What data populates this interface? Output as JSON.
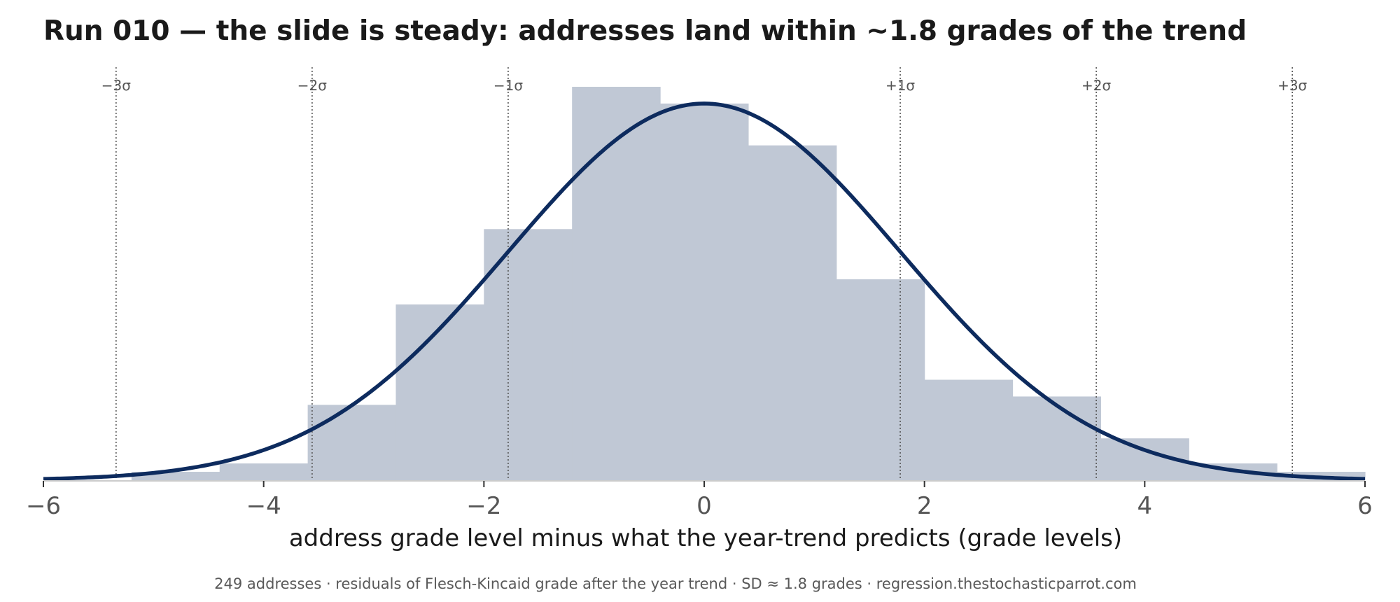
{
  "chart_data": {
    "type": "bar",
    "title": "Run 010 — the slide is steady: addresses land within ~1.8 grades of the trend",
    "xlabel": "address grade level minus what the year-trend predicts  (grade levels)",
    "footnote": "249 addresses · residuals of Flesch-Kincaid grade after the year trend · SD ≈ 1.8 grades · regression.thestochasticparrot.com",
    "xlim": [
      -6,
      6
    ],
    "xticks": [
      -6,
      -4,
      -2,
      0,
      2,
      4,
      6
    ],
    "xtick_labels": [
      "−6",
      "−4",
      "−2",
      "0",
      "2",
      "4",
      "6"
    ],
    "histogram": {
      "bin_edges": [
        -6.0,
        -5.2,
        -4.4,
        -3.6,
        -2.8,
        -2.0,
        -1.2,
        -0.4,
        0.4,
        1.2,
        2.0,
        2.8,
        3.6,
        4.4,
        5.2,
        6.0
      ],
      "counts": [
        0,
        1,
        2,
        9,
        21,
        30,
        47,
        45,
        40,
        24,
        12,
        10,
        5,
        2,
        1
      ],
      "color": "#c0c8d5"
    },
    "normal_curve": {
      "mean": 0,
      "sd": 1.78,
      "peak_count": 45,
      "color": "#0d2b5e"
    },
    "sigma_lines": [
      {
        "x": -5.34,
        "label": "−3σ"
      },
      {
        "x": -3.56,
        "label": "−2σ"
      },
      {
        "x": -1.78,
        "label": "−1σ"
      },
      {
        "x": 1.78,
        "label": "+1σ"
      },
      {
        "x": 3.56,
        "label": "+2σ"
      },
      {
        "x": 5.34,
        "label": "+3σ"
      }
    ],
    "grid": false
  }
}
